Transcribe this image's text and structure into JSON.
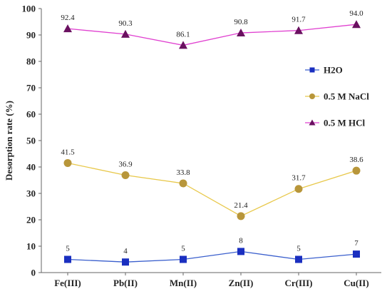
{
  "chart_data": {
    "type": "line",
    "title": "",
    "xlabel": "",
    "ylabel": "Desorption rate (%)",
    "ylim": [
      0,
      100
    ],
    "yticks": [
      0,
      10,
      20,
      30,
      40,
      50,
      60,
      70,
      80,
      90,
      100
    ],
    "categories": [
      "Fe(III)",
      "Pb(II)",
      "Mn(II)",
      "Zn(II)",
      "Cr(III)",
      "Cu(II)"
    ],
    "legend_position": "right",
    "grid": false,
    "series": [
      {
        "name": "H2O",
        "values": [
          5,
          4,
          5,
          8,
          5,
          7
        ],
        "labels": [
          "5",
          "4",
          "5",
          "8",
          "5",
          "7"
        ],
        "color": "#3a5fcd",
        "marker_color": "#1a2fc0",
        "marker": "square"
      },
      {
        "name": "0.5 M NaCl",
        "values": [
          41.5,
          36.9,
          33.8,
          21.4,
          31.7,
          38.6
        ],
        "labels": [
          "41.5",
          "36.9",
          "33.8",
          "21.4",
          "31.7",
          "38.6"
        ],
        "color": "#e8c84a",
        "marker_color": "#b8963a",
        "marker": "circle"
      },
      {
        "name": "0.5 M HCl",
        "values": [
          92.4,
          90.3,
          86.1,
          90.8,
          91.7,
          94.0
        ],
        "labels": [
          "92.4",
          "90.3",
          "86.1",
          "90.8",
          "91.7",
          "94.0"
        ],
        "color": "#e040d0",
        "marker_color": "#6a1060",
        "marker": "triangle"
      }
    ]
  }
}
